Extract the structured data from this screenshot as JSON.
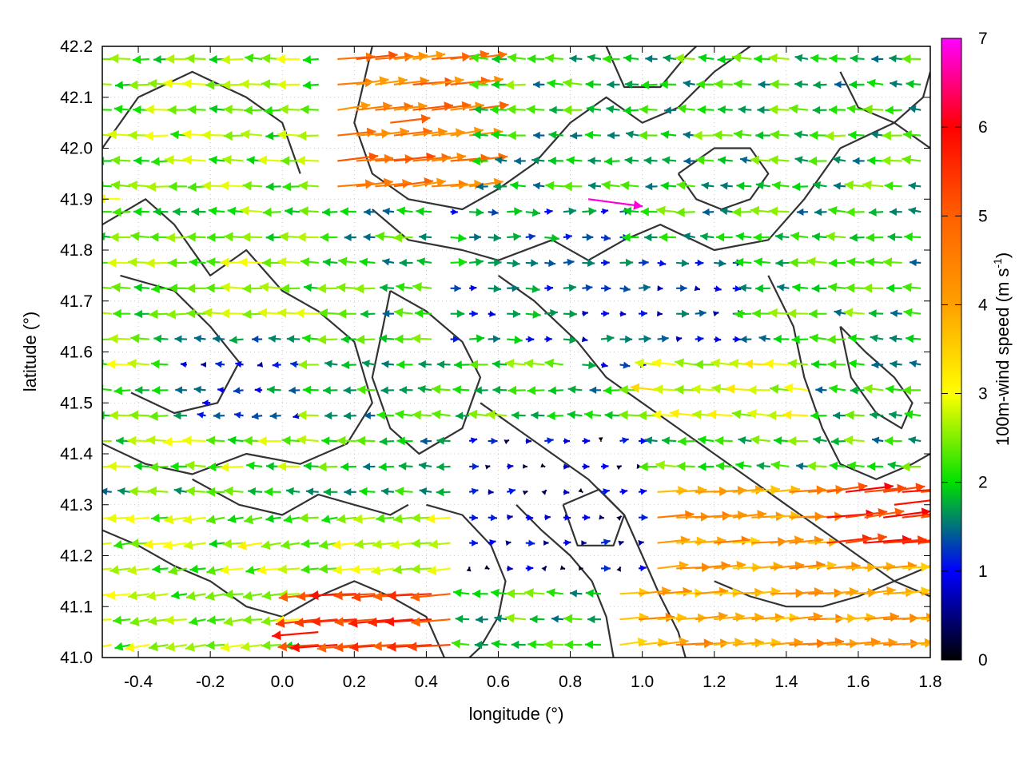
{
  "chart_data": {
    "type": "vector-field",
    "xlabel": "longitude (°)",
    "ylabel": "latitude (°)",
    "xlim": [
      -0.5,
      1.8
    ],
    "ylim": [
      41.0,
      42.2
    ],
    "xticks": [
      -0.4,
      -0.2,
      0.0,
      0.2,
      0.4,
      0.6,
      0.8,
      1.0,
      1.2,
      1.4,
      1.6,
      1.8
    ],
    "xtick_labels": [
      "-0.4",
      "-0.2",
      "0.0",
      "0.2",
      "0.4",
      "0.6",
      "0.8",
      "1.0",
      "1.2",
      "1.4",
      "1.6",
      "1.8"
    ],
    "yticks": [
      41.0,
      41.1,
      41.2,
      41.3,
      41.4,
      41.5,
      41.6,
      41.7,
      41.8,
      41.9,
      42.0,
      42.1,
      42.2
    ],
    "ytick_labels": [
      "41.0",
      "41.1",
      "41.2",
      "41.3",
      "41.4",
      "41.5",
      "41.6",
      "41.7",
      "41.8",
      "41.9",
      "42.0",
      "42.1",
      "42.2"
    ],
    "grid": true,
    "colorbar": {
      "label_main": "100m-wind speed (m s",
      "label_sup": "-1",
      "label_end": ")",
      "range": [
        0,
        7
      ],
      "ticks": [
        0,
        1,
        2,
        3,
        4,
        5,
        6,
        7
      ],
      "tick_labels": [
        "0",
        "1",
        "2",
        "3",
        "4",
        "5",
        "6",
        "7"
      ],
      "stops": [
        {
          "v": 0,
          "color": "#000000"
        },
        {
          "v": 1,
          "color": "#0000ff"
        },
        {
          "v": 2,
          "color": "#00e000"
        },
        {
          "v": 3,
          "color": "#ffff00"
        },
        {
          "v": 4,
          "color": "#ffa000"
        },
        {
          "v": 5,
          "color": "#ff6000"
        },
        {
          "v": 6,
          "color": "#ff0000"
        },
        {
          "v": 7,
          "color": "#ff00ff"
        }
      ]
    },
    "regions": [
      {
        "x": [
          -0.5,
          0.15
        ],
        "y": [
          41.35,
          42.2
        ],
        "u": -2.4,
        "v": 0.05
      },
      {
        "x": [
          -0.3,
          0.05
        ],
        "y": [
          41.45,
          41.65
        ],
        "u": -1.2,
        "v": 0.0
      },
      {
        "x": [
          0.15,
          0.55
        ],
        "y": [
          41.9,
          42.2
        ],
        "u": 4.6,
        "v": 0.5
      },
      {
        "x": [
          0.45,
          0.95
        ],
        "y": [
          41.6,
          41.9
        ],
        "u": 1.5,
        "v": 0.0
      },
      {
        "x": [
          0.8,
          1.3
        ],
        "y": [
          41.55,
          41.8
        ],
        "u": 1.2,
        "v": 0.0
      },
      {
        "x": [
          1.3,
          1.8
        ],
        "y": [
          41.4,
          42.0
        ],
        "u": -2.0,
        "v": 0.1
      },
      {
        "x": [
          -0.5,
          0.5
        ],
        "y": [
          41.0,
          41.3
        ],
        "u": -2.5,
        "v": -0.3
      },
      {
        "x": [
          0.1,
          0.5
        ],
        "y": [
          41.0,
          41.15
        ],
        "u": -5.5,
        "v": -0.4
      },
      {
        "x": [
          0.9,
          1.8
        ],
        "y": [
          41.0,
          41.35
        ],
        "u": 4.0,
        "v": 0.3
      },
      {
        "x": [
          1.5,
          1.8
        ],
        "y": [
          41.2,
          41.35
        ],
        "u": 5.5,
        "v": 0.6
      },
      {
        "x": [
          0.5,
          1.0
        ],
        "y": [
          41.15,
          41.45
        ],
        "u": 0.6,
        "v": 0.1
      },
      {
        "x": [
          1.0,
          1.5
        ],
        "y": [
          41.45,
          41.6
        ],
        "u": -3.0,
        "v": 0.2
      }
    ],
    "vectors_sample": [
      {
        "lon": -0.45,
        "lat": 41.9,
        "u": -3.0,
        "v": 0.1
      },
      {
        "lon": 0.3,
        "lat": 42.05,
        "u": 5.0,
        "v": 0.6
      },
      {
        "lon": 0.85,
        "lat": 41.9,
        "u": 6.8,
        "v": -0.9
      },
      {
        "lon": 0.1,
        "lat": 41.05,
        "u": -5.8,
        "v": -0.5
      },
      {
        "lon": 1.7,
        "lat": 41.3,
        "u": 5.8,
        "v": 0.7
      },
      {
        "lon": -0.2,
        "lat": 41.5,
        "u": -1.0,
        "v": 0.0
      }
    ],
    "contours": [
      [
        [
          -0.5,
          41.85
        ],
        [
          -0.38,
          41.9
        ],
        [
          -0.3,
          41.85
        ],
        [
          -0.2,
          41.75
        ],
        [
          -0.1,
          41.8
        ],
        [
          0.0,
          41.72
        ],
        [
          0.1,
          41.68
        ],
        [
          0.2,
          41.62
        ],
        [
          0.25,
          41.5
        ],
        [
          0.18,
          41.42
        ],
        [
          0.05,
          41.38
        ],
        [
          -0.1,
          41.4
        ],
        [
          -0.25,
          41.36
        ],
        [
          -0.38,
          41.38
        ],
        [
          -0.5,
          41.42
        ]
      ],
      [
        [
          -0.45,
          41.75
        ],
        [
          -0.3,
          41.72
        ],
        [
          -0.2,
          41.65
        ],
        [
          -0.12,
          41.58
        ],
        [
          -0.18,
          41.5
        ],
        [
          -0.3,
          41.48
        ],
        [
          -0.42,
          41.52
        ]
      ],
      [
        [
          -0.5,
          42.0
        ],
        [
          -0.4,
          42.1
        ],
        [
          -0.25,
          42.15
        ],
        [
          -0.1,
          42.1
        ],
        [
          0.0,
          42.05
        ],
        [
          0.05,
          41.95
        ]
      ],
      [
        [
          0.25,
          42.2
        ],
        [
          0.2,
          42.05
        ],
        [
          0.25,
          41.95
        ],
        [
          0.35,
          41.9
        ],
        [
          0.5,
          41.88
        ],
        [
          0.6,
          41.92
        ],
        [
          0.7,
          41.97
        ],
        [
          0.8,
          42.05
        ],
        [
          0.9,
          42.1
        ],
        [
          1.0,
          42.05
        ],
        [
          1.1,
          42.08
        ],
        [
          1.2,
          42.15
        ],
        [
          1.3,
          42.2
        ]
      ],
      [
        [
          0.25,
          41.88
        ],
        [
          0.35,
          41.82
        ],
        [
          0.5,
          41.8
        ],
        [
          0.6,
          41.78
        ],
        [
          0.75,
          41.82
        ],
        [
          0.85,
          41.78
        ],
        [
          0.95,
          41.82
        ],
        [
          1.05,
          41.85
        ],
        [
          1.2,
          41.8
        ],
        [
          1.35,
          41.82
        ],
        [
          1.45,
          41.9
        ],
        [
          1.55,
          42.0
        ],
        [
          1.7,
          42.05
        ],
        [
          1.8,
          42.0
        ]
      ],
      [
        [
          0.3,
          41.72
        ],
        [
          0.4,
          41.68
        ],
        [
          0.5,
          41.62
        ],
        [
          0.55,
          41.55
        ],
        [
          0.5,
          41.45
        ],
        [
          0.38,
          41.4
        ],
        [
          0.3,
          41.45
        ],
        [
          0.25,
          41.55
        ],
        [
          0.28,
          41.65
        ],
        [
          0.3,
          41.72
        ]
      ],
      [
        [
          0.6,
          41.75
        ],
        [
          0.7,
          41.7
        ],
        [
          0.82,
          41.62
        ],
        [
          0.9,
          41.55
        ],
        [
          1.0,
          41.5
        ],
        [
          1.1,
          41.45
        ],
        [
          1.2,
          41.4
        ],
        [
          1.3,
          41.35
        ],
        [
          1.4,
          41.3
        ],
        [
          1.5,
          41.25
        ],
        [
          1.6,
          41.2
        ],
        [
          1.7,
          41.15
        ],
        [
          1.8,
          41.12
        ]
      ],
      [
        [
          0.55,
          41.5
        ],
        [
          0.65,
          41.45
        ],
        [
          0.75,
          41.4
        ],
        [
          0.85,
          41.35
        ],
        [
          0.95,
          41.28
        ],
        [
          1.0,
          41.2
        ],
        [
          1.05,
          41.12
        ],
        [
          1.1,
          41.05
        ],
        [
          1.12,
          41.0
        ]
      ],
      [
        [
          0.4,
          41.3
        ],
        [
          0.5,
          41.28
        ],
        [
          0.58,
          41.22
        ],
        [
          0.62,
          41.15
        ],
        [
          0.6,
          41.08
        ],
        [
          0.55,
          41.02
        ],
        [
          0.52,
          41.0
        ]
      ],
      [
        [
          0.65,
          41.3
        ],
        [
          0.72,
          41.25
        ],
        [
          0.8,
          41.2
        ],
        [
          0.86,
          41.15
        ],
        [
          0.9,
          41.08
        ],
        [
          0.92,
          41.0
        ]
      ],
      [
        [
          0.78,
          41.3
        ],
        [
          0.88,
          41.33
        ],
        [
          0.95,
          41.28
        ],
        [
          0.92,
          41.22
        ],
        [
          0.82,
          41.22
        ],
        [
          0.78,
          41.3
        ]
      ],
      [
        [
          -0.5,
          41.25
        ],
        [
          -0.4,
          41.22
        ],
        [
          -0.3,
          41.18
        ],
        [
          -0.2,
          41.15
        ],
        [
          -0.1,
          41.1
        ],
        [
          0.0,
          41.08
        ],
        [
          0.1,
          41.12
        ],
        [
          0.2,
          41.15
        ],
        [
          0.3,
          41.12
        ],
        [
          0.4,
          41.08
        ],
        [
          0.45,
          41.0
        ]
      ],
      [
        [
          -0.25,
          41.35
        ],
        [
          -0.12,
          41.3
        ],
        [
          0.0,
          41.28
        ],
        [
          0.1,
          41.32
        ],
        [
          0.2,
          41.3
        ],
        [
          0.3,
          41.28
        ],
        [
          0.35,
          41.3
        ]
      ],
      [
        [
          1.35,
          41.75
        ],
        [
          1.42,
          41.65
        ],
        [
          1.45,
          41.55
        ],
        [
          1.5,
          41.45
        ],
        [
          1.55,
          41.38
        ],
        [
          1.65,
          41.35
        ],
        [
          1.75,
          41.38
        ],
        [
          1.8,
          41.4
        ]
      ],
      [
        [
          1.55,
          41.65
        ],
        [
          1.62,
          41.6
        ],
        [
          1.7,
          41.55
        ],
        [
          1.75,
          41.5
        ],
        [
          1.72,
          41.45
        ],
        [
          1.65,
          41.48
        ],
        [
          1.58,
          41.55
        ],
        [
          1.55,
          41.65
        ]
      ],
      [
        [
          1.1,
          41.95
        ],
        [
          1.15,
          41.9
        ],
        [
          1.22,
          41.88
        ],
        [
          1.3,
          41.9
        ],
        [
          1.35,
          41.95
        ],
        [
          1.3,
          42.0
        ],
        [
          1.2,
          42.0
        ],
        [
          1.1,
          41.95
        ]
      ],
      [
        [
          1.55,
          42.15
        ],
        [
          1.6,
          42.08
        ],
        [
          1.7,
          42.05
        ],
        [
          1.78,
          42.1
        ],
        [
          1.8,
          42.15
        ]
      ],
      [
        [
          0.9,
          42.2
        ],
        [
          0.95,
          42.12
        ],
        [
          1.05,
          42.12
        ],
        [
          1.12,
          42.18
        ],
        [
          1.15,
          42.2
        ]
      ],
      [
        [
          1.2,
          41.15
        ],
        [
          1.3,
          41.12
        ],
        [
          1.4,
          41.1
        ],
        [
          1.5,
          41.1
        ],
        [
          1.6,
          41.12
        ],
        [
          1.7,
          41.15
        ],
        [
          1.8,
          41.18
        ]
      ]
    ]
  }
}
